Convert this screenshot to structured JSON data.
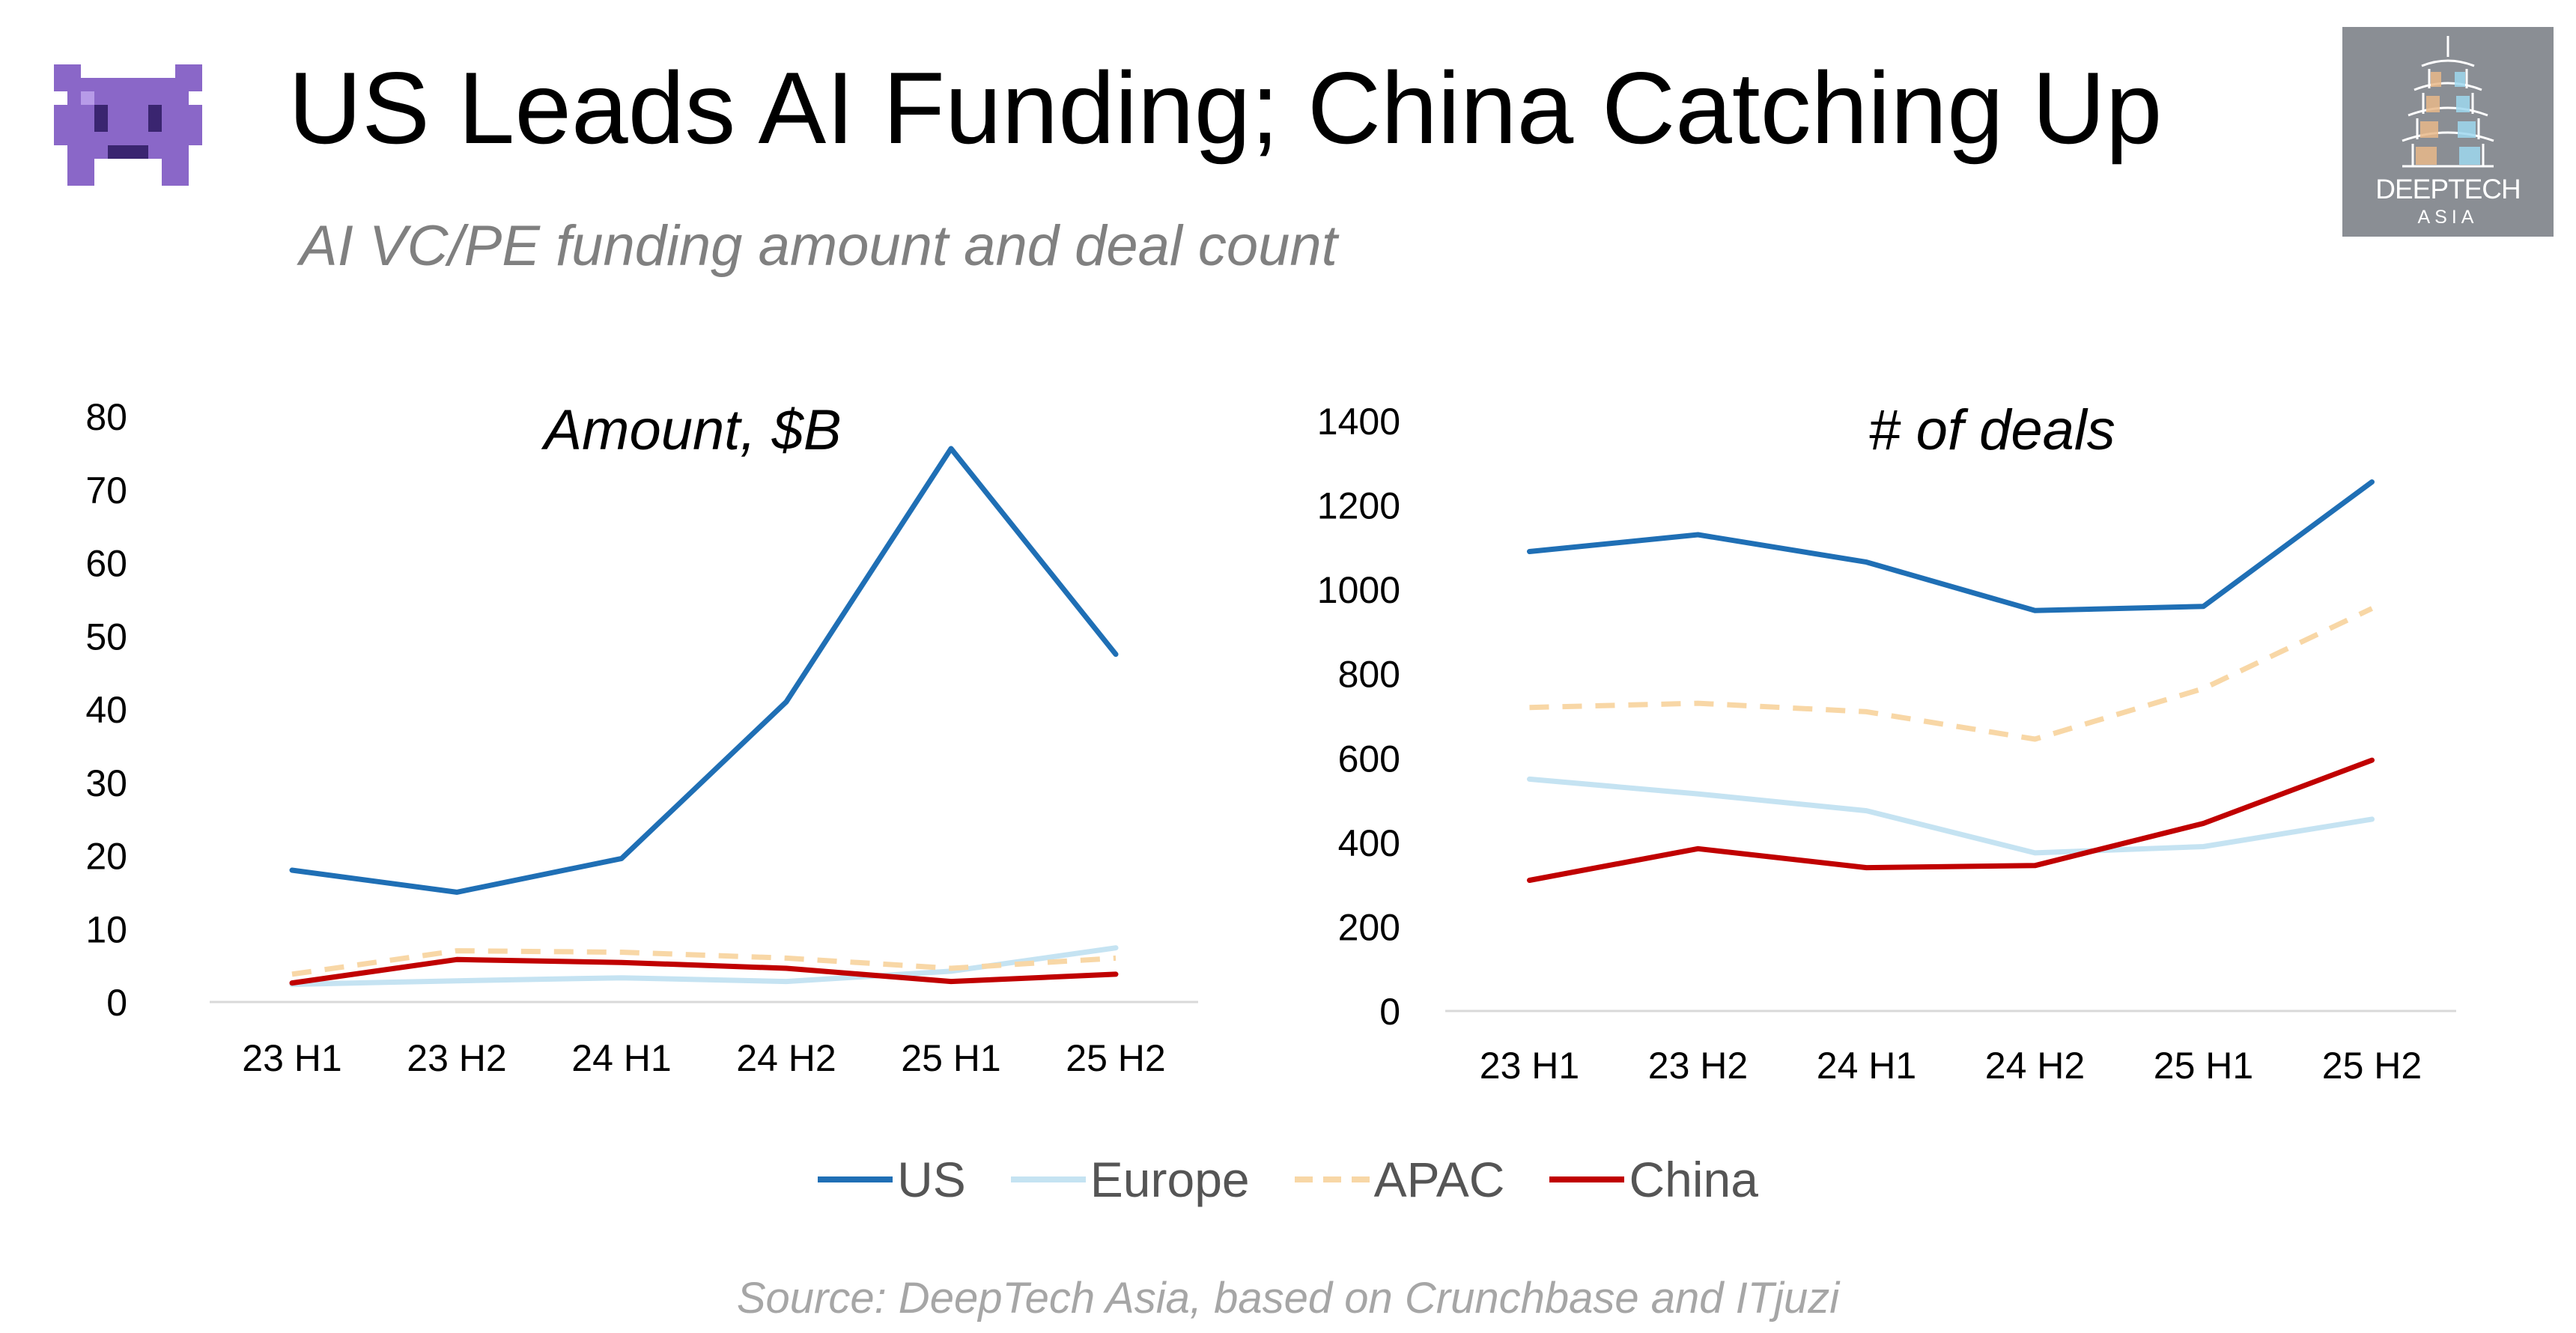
{
  "header": {
    "title": "US Leads AI Funding; China Catching Up",
    "subtitle": "AI VC/PE funding amount and deal count",
    "icon": "alien-monster-icon"
  },
  "logo": {
    "name": "DEEPTECH",
    "sub": "ASIA",
    "icon": "pagoda-icon",
    "background": "#8a8e94"
  },
  "colors": {
    "US": "#1f6fb5",
    "Europe": "#c5e3f2",
    "APAC": "#f8d7a6",
    "China": "#c00000",
    "axis": "#d9d9d9"
  },
  "legend": [
    {
      "name": "US",
      "style": "solid"
    },
    {
      "name": "Europe",
      "style": "solid"
    },
    {
      "name": "APAC",
      "style": "dashed"
    },
    {
      "name": "China",
      "style": "solid"
    }
  ],
  "chart_data": [
    {
      "type": "line",
      "title": "Amount, $B",
      "categories": [
        "23 H1",
        "23 H2",
        "24 H1",
        "24 H2",
        "25 H1",
        "25 H2"
      ],
      "ylim": [
        0,
        80
      ],
      "yticks": [
        0,
        10,
        20,
        30,
        40,
        50,
        60,
        70,
        80
      ],
      "series": [
        {
          "name": "US",
          "values": [
            18,
            15,
            19.6,
            41,
            75.6,
            47.5
          ]
        },
        {
          "name": "Europe",
          "values": [
            2.4,
            2.9,
            3.3,
            2.8,
            4.2,
            7.4
          ]
        },
        {
          "name": "APAC",
          "values": [
            3.8,
            7,
            6.8,
            6,
            4.6,
            6
          ]
        },
        {
          "name": "China",
          "values": [
            2.6,
            5.8,
            5.4,
            4.6,
            2.8,
            3.8
          ]
        }
      ],
      "grid": false,
      "legend_position": "bottom"
    },
    {
      "type": "line",
      "title": "# of deals",
      "categories": [
        "23 H1",
        "23 H2",
        "24 H1",
        "24 H2",
        "25 H1",
        "25 H2"
      ],
      "ylim": [
        0,
        1400
      ],
      "yticks": [
        0,
        200,
        400,
        600,
        800,
        1000,
        1200,
        1400
      ],
      "series": [
        {
          "name": "US",
          "values": [
            1090,
            1130,
            1065,
            950,
            960,
            1255
          ]
        },
        {
          "name": "Europe",
          "values": [
            550,
            515,
            475,
            375,
            390,
            455
          ]
        },
        {
          "name": "APAC",
          "values": [
            720,
            730,
            710,
            645,
            765,
            955
          ]
        },
        {
          "name": "China",
          "values": [
            310,
            385,
            340,
            345,
            445,
            595
          ]
        }
      ],
      "grid": false,
      "legend_position": "bottom"
    }
  ],
  "source": "Source: DeepTech Asia, based on Crunchbase and ITjuzi"
}
